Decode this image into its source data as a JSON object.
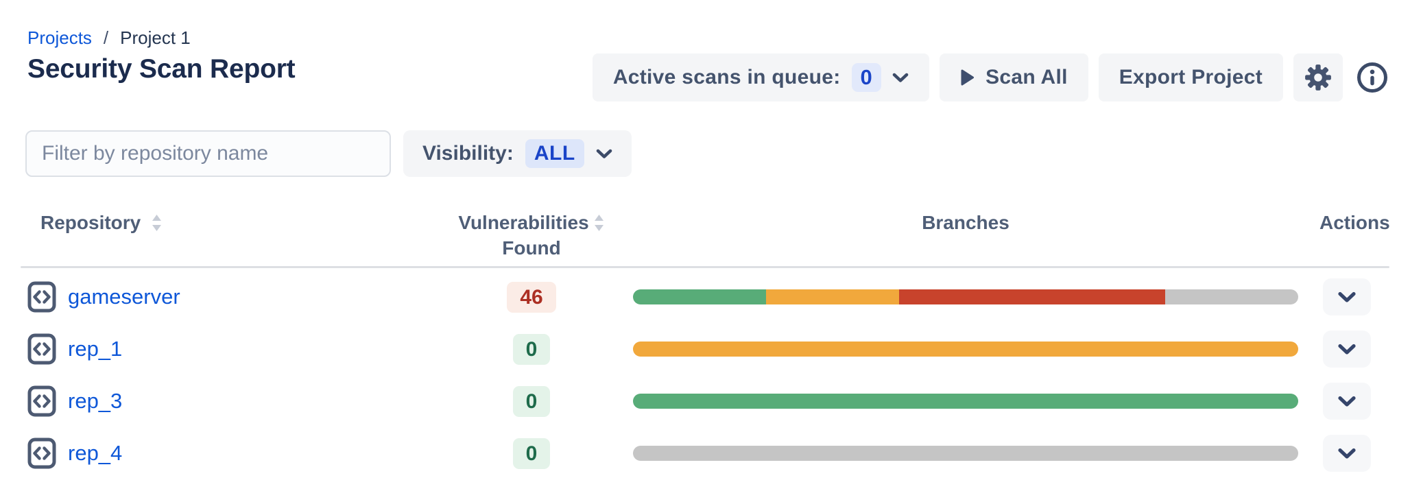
{
  "breadcrumb": {
    "projects": "Projects",
    "separator": "/",
    "current": "Project 1"
  },
  "title": "Security Scan Report",
  "toolbar": {
    "queue_label": "Active scans in queue:",
    "queue_count": "0",
    "scan_all": "Scan All",
    "export_project": "Export Project",
    "settings_icon": "gear-icon",
    "info_icon": "info-icon"
  },
  "filters": {
    "search_placeholder": "Filter by repository name",
    "visibility_label": "Visibility:",
    "visibility_value": "ALL"
  },
  "table": {
    "headers": {
      "repository": "Repository",
      "vulnerabilities": "Vulnerabilities",
      "vulnerabilities_line2": "Found",
      "branches": "Branches",
      "actions": "Actions"
    },
    "rows": [
      {
        "name": "gameserver",
        "vulnerabilities": "46",
        "severity": "danger",
        "bar": [
          {
            "color": "#58AC78",
            "pct": 20
          },
          {
            "color": "#F1A83C",
            "pct": 20
          },
          {
            "color": "#C8432C",
            "pct": 40
          },
          {
            "color": "#C5C5C5",
            "pct": 20
          }
        ]
      },
      {
        "name": "rep_1",
        "vulnerabilities": "0",
        "severity": "success",
        "bar": [
          {
            "color": "#F1A83C",
            "pct": 100
          }
        ]
      },
      {
        "name": "rep_3",
        "vulnerabilities": "0",
        "severity": "success",
        "bar": [
          {
            "color": "#58AC78",
            "pct": 100
          }
        ]
      },
      {
        "name": "rep_4",
        "vulnerabilities": "0",
        "severity": "success",
        "bar": [
          {
            "color": "#C5C5C5",
            "pct": 100
          }
        ]
      }
    ]
  },
  "colors": {
    "link_blue": "#0E57D8",
    "accent_blue_text": "#1A44C8",
    "accent_blue_bg": "#E2E9FB",
    "button_bg": "#F4F5F7",
    "text_dark_navy": "#1B2B4D",
    "text_slate": "#44536D",
    "danger_text": "#AC2F23",
    "danger_bg": "#FBECE6",
    "success_text": "#1E6B4B",
    "success_bg": "#E4F3E9",
    "bar_green": "#58AC78",
    "bar_orange": "#F1A83C",
    "bar_red": "#C8432C",
    "bar_gray": "#C5C5C5",
    "header_divider": "#DDDFE3"
  }
}
